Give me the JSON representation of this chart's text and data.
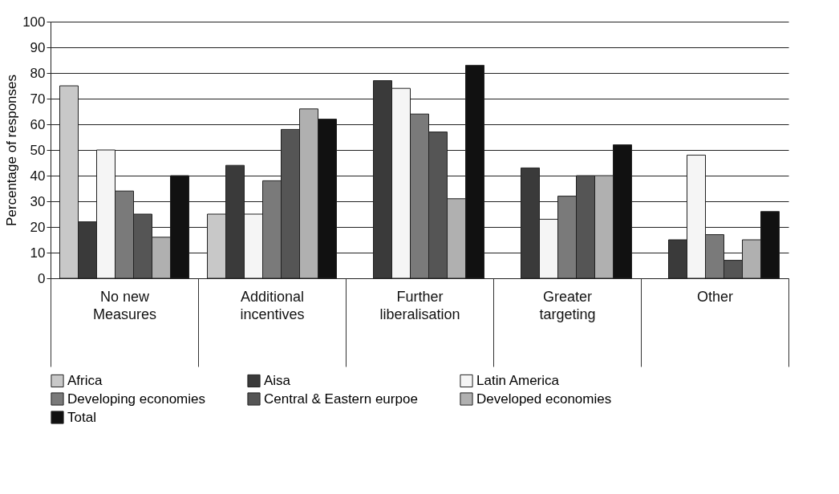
{
  "chart_data": {
    "type": "bar",
    "ylabel": "Percentage of responses",
    "categories": [
      "No new\nMeasures",
      "Additional\nincentives",
      "Further\nliberalisation",
      "Greater\ntargeting",
      "Other"
    ],
    "ylim": [
      0,
      100
    ],
    "yticks": [
      0,
      10,
      20,
      30,
      40,
      50,
      60,
      70,
      80,
      90,
      100
    ],
    "grid": "y",
    "legend": "bottom",
    "series": [
      {
        "name": "Africa",
        "color": "#c8c8c8",
        "values": [
          75,
          25,
          null,
          null,
          null
        ]
      },
      {
        "name": "Aisa",
        "color": "#3a3a3a",
        "values": [
          22,
          44,
          77,
          43,
          15
        ]
      },
      {
        "name": "Latin America",
        "color": "#f5f5f5",
        "values": [
          50,
          25,
          74,
          23,
          48
        ]
      },
      {
        "name": "Developing economies",
        "color": "#7a7a7a",
        "values": [
          34,
          38,
          64,
          32,
          17
        ]
      },
      {
        "name": "Central & Eastern eurpoe",
        "color": "#555555",
        "values": [
          25,
          58,
          57,
          40,
          7
        ]
      },
      {
        "name": "Developed economies",
        "color": "#b0b0b0",
        "values": [
          16,
          66,
          31,
          40,
          15
        ]
      },
      {
        "name": "Total",
        "color": "#111111",
        "values": [
          40,
          62,
          83,
          52,
          26
        ]
      }
    ]
  }
}
